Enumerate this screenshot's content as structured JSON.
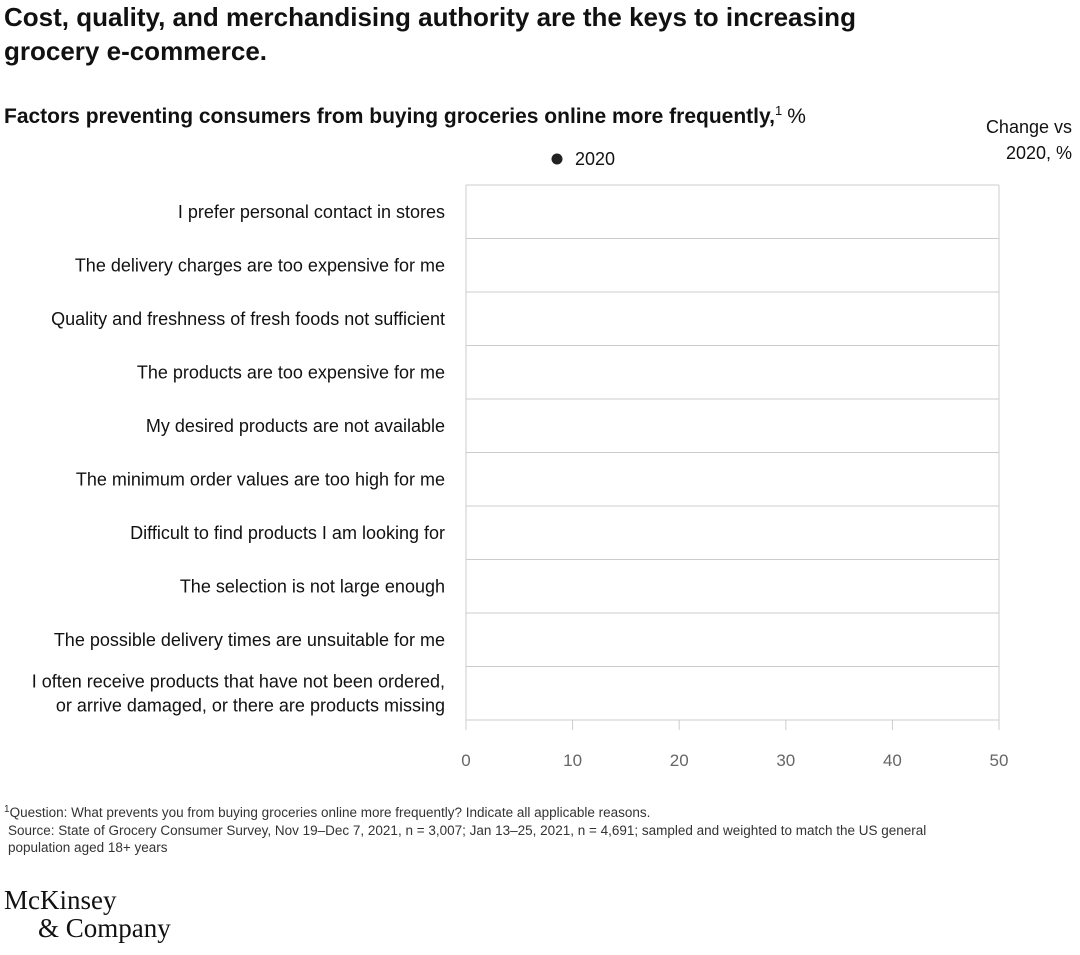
{
  "chart_data": {
    "type": "dot",
    "title": [
      "Cost, quality, and merchandising authority are the keys to increasing",
      "grocery e-commerce."
    ],
    "subtitle": "Factors preventing consumers from buying groceries online more frequently,",
    "subtitle_footnote": "1",
    "subtitle_unit": "%",
    "column_header": [
      "Change vs",
      "2020, %"
    ],
    "categories": [
      "I prefer personal contact in stores",
      "The delivery charges are too expensive for me",
      "Quality and freshness of fresh foods not sufficient",
      "The products are too expensive for me",
      "My desired products are not available",
      "The minimum order values are too high for me",
      "Difficult to find products I am looking for",
      "The selection is not large enough",
      "The possible delivery times are unsuitable for me",
      "I often receive products that have not been ordered,\nor arrive damaged, or there are products missing"
    ],
    "series": [
      {
        "name": "2020",
        "color": "#222222",
        "values": [
          null,
          null,
          null,
          null,
          null,
          null,
          null,
          null,
          null,
          null
        ]
      }
    ],
    "xlim": [
      0,
      50
    ],
    "xticks": [
      0,
      10,
      20,
      30,
      40,
      50
    ],
    "grid": false,
    "footnote_marker": "1",
    "footnote": "Question: What prevents you from buying groceries online more frequently? Indicate all applicable reasons.",
    "source": [
      "Source: State of Grocery Consumer Survey, Nov 19–Dec 7, 2021, n = 3,007; Jan 13–25, 2021, n = 4,691; sampled and weighted to match the US general",
      "population aged 18+ years"
    ],
    "logo": [
      "McKinsey",
      "& Company"
    ]
  }
}
